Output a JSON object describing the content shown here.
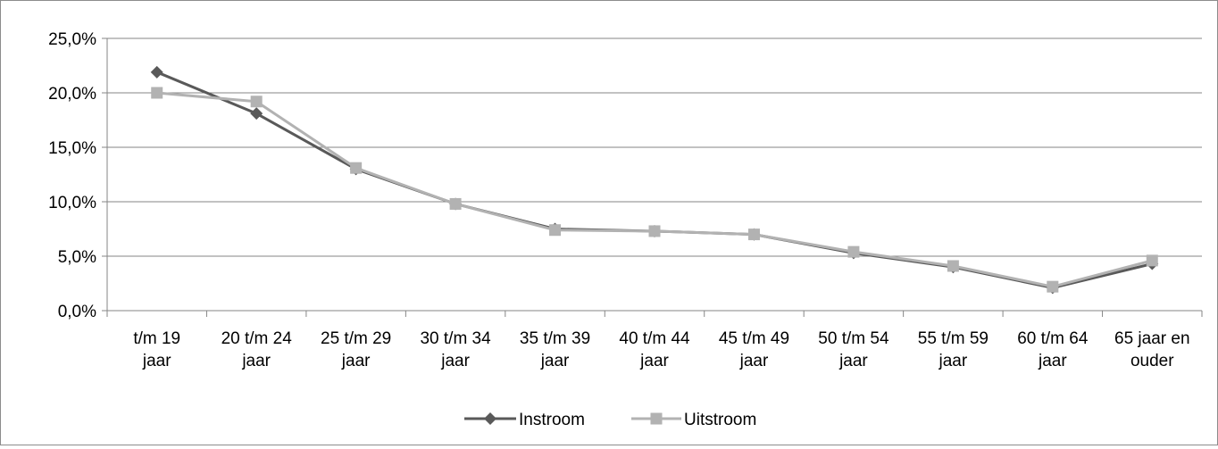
{
  "chart_data": {
    "type": "line",
    "categories": [
      [
        "t/m 19",
        "jaar"
      ],
      [
        "20 t/m 24",
        "jaar"
      ],
      [
        "25 t/m 29",
        "jaar"
      ],
      [
        "30 t/m 34",
        "jaar"
      ],
      [
        "35 t/m 39",
        "jaar"
      ],
      [
        "40 t/m 44",
        "jaar"
      ],
      [
        "45 t/m 49",
        "jaar"
      ],
      [
        "50 t/m 54",
        "jaar"
      ],
      [
        "55 t/m 59",
        "jaar"
      ],
      [
        "60 t/m 64",
        "jaar"
      ],
      [
        "65 jaar en",
        "ouder"
      ]
    ],
    "series": [
      {
        "name": "Instroom",
        "color": "#595959",
        "marker": "diamond",
        "values": [
          21.9,
          18.1,
          13.0,
          9.8,
          7.5,
          7.3,
          7.0,
          5.3,
          4.0,
          2.1,
          4.3
        ]
      },
      {
        "name": "Uitstroom",
        "color": "#b2b2b2",
        "marker": "square",
        "values": [
          20.0,
          19.2,
          13.1,
          9.8,
          7.4,
          7.3,
          7.0,
          5.4,
          4.1,
          2.2,
          4.6
        ]
      }
    ],
    "y_ticks": [
      "0,0%",
      "5,0%",
      "10,0%",
      "15,0%",
      "20,0%",
      "25,0%"
    ],
    "ylim": [
      0,
      25
    ],
    "y_step": 5,
    "grid": true,
    "legend_position": "bottom"
  }
}
